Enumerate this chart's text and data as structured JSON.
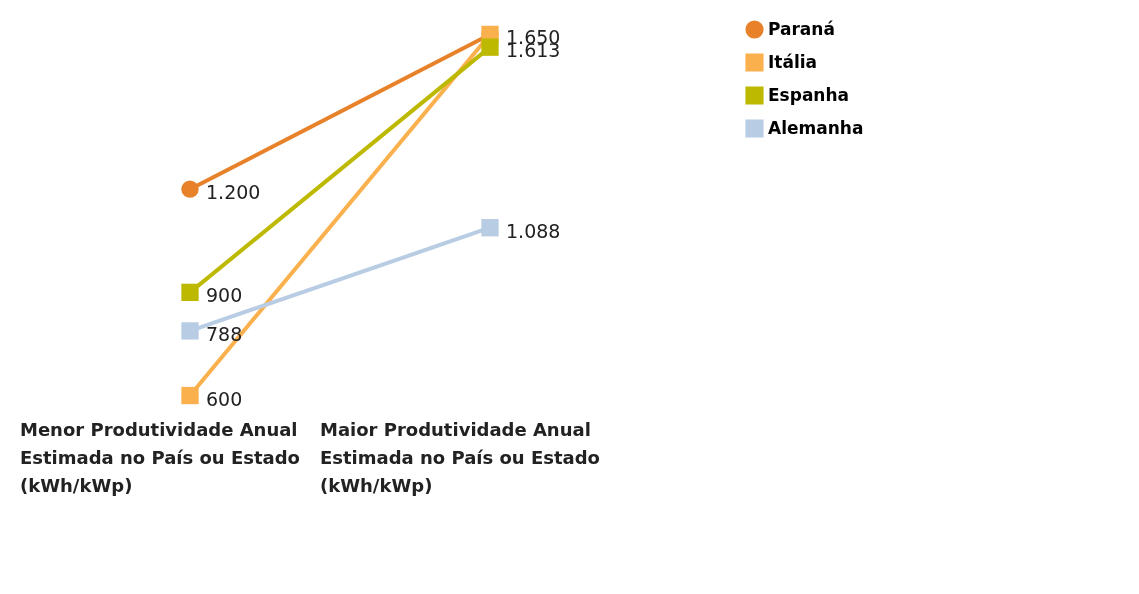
{
  "chart_data": {
    "type": "line",
    "categories": [
      "Menor Produtividade Anual Estimada no País ou Estado (kWh/kWp)",
      "Maior Produtividade Anual Estimada no País ou Estado (kWh/kWp)"
    ],
    "series": [
      {
        "name": "Paraná",
        "color": "#e8822a",
        "marker": "circle",
        "values": [
          1200,
          1650
        ],
        "value_labels": [
          "1.200",
          null
        ]
      },
      {
        "name": "Itália",
        "color": "#fbb04e",
        "marker": "square",
        "values": [
          600,
          1650
        ],
        "value_labels": [
          "600",
          "1.650"
        ]
      },
      {
        "name": "Espanha",
        "color": "#bdb800",
        "marker": "square",
        "values": [
          900,
          1613
        ],
        "value_labels": [
          "900",
          "1.613"
        ]
      },
      {
        "name": "Alemanha",
        "color": "#b8cce4",
        "marker": "square",
        "values": [
          788,
          1088
        ],
        "value_labels": [
          "788",
          "1.088"
        ]
      }
    ],
    "legend": "right",
    "tick_labels": "x"
  }
}
